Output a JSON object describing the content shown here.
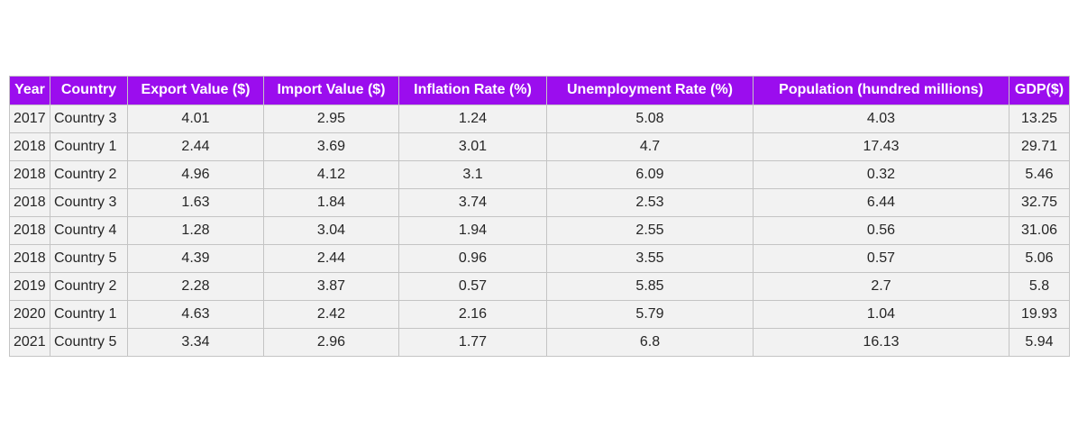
{
  "chart_data": {
    "type": "table",
    "columns": [
      "Year",
      "Country",
      "Export Value ($)",
      "Import Value ($)",
      "Inflation Rate (%)",
      "Unemployment Rate (%)",
      "Population (hundred millions)",
      "GDP($)"
    ],
    "rows": [
      [
        "2017",
        "Country 3",
        "4.01",
        "2.95",
        "1.24",
        "5.08",
        "4.03",
        "13.25"
      ],
      [
        "2018",
        "Country 1",
        "2.44",
        "3.69",
        "3.01",
        "4.7",
        "17.43",
        "29.71"
      ],
      [
        "2018",
        "Country 2",
        "4.96",
        "4.12",
        "3.1",
        "6.09",
        "0.32",
        "5.46"
      ],
      [
        "2018",
        "Country 3",
        "1.63",
        "1.84",
        "3.74",
        "2.53",
        "6.44",
        "32.75"
      ],
      [
        "2018",
        "Country 4",
        "1.28",
        "3.04",
        "1.94",
        "2.55",
        "0.56",
        "31.06"
      ],
      [
        "2018",
        "Country 5",
        "4.39",
        "2.44",
        "0.96",
        "3.55",
        "0.57",
        "5.06"
      ],
      [
        "2019",
        "Country 2",
        "2.28",
        "3.87",
        "0.57",
        "5.85",
        "2.7",
        "5.8"
      ],
      [
        "2020",
        "Country 1",
        "4.63",
        "2.42",
        "2.16",
        "5.79",
        "1.04",
        "19.93"
      ],
      [
        "2021",
        "Country 5",
        "3.34",
        "2.96",
        "1.77",
        "6.8",
        "16.13",
        "5.94"
      ]
    ],
    "header_color": "#9b0dee",
    "header_text_color": "#ffffff",
    "cell_color": "#f2f2f2",
    "border_color": "#c4c4c4"
  }
}
